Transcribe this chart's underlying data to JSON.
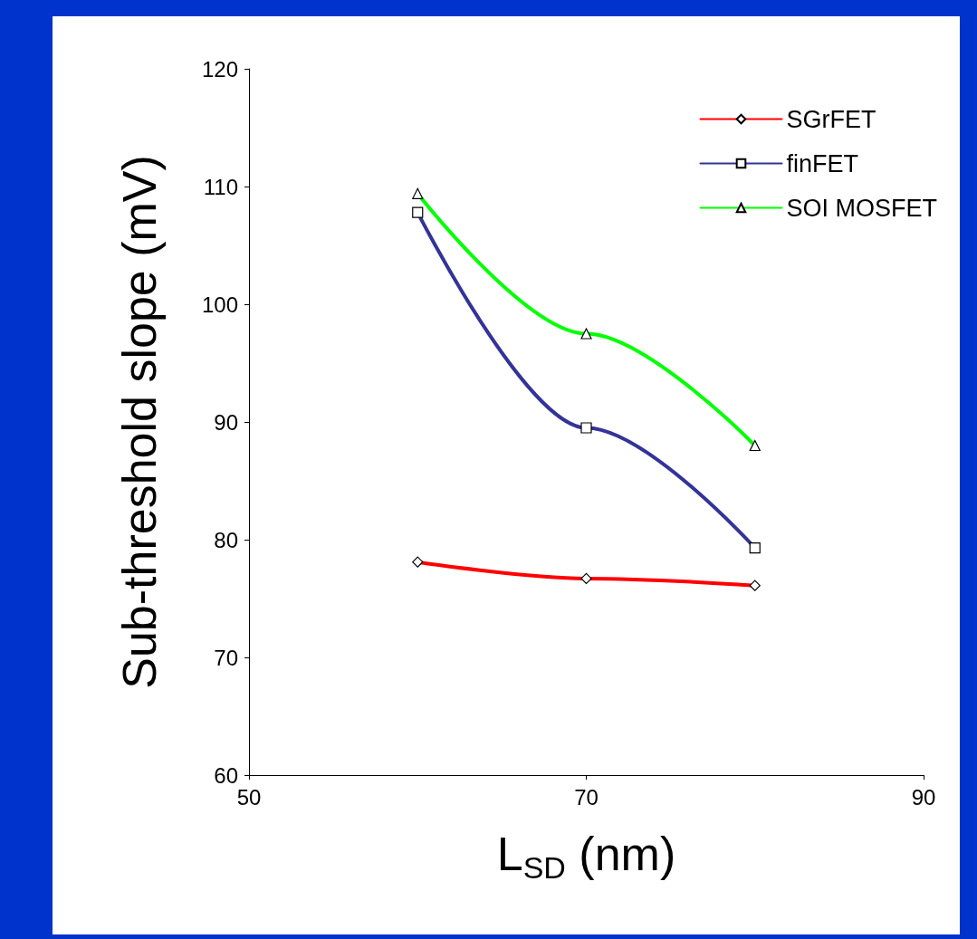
{
  "chart_data": {
    "type": "line",
    "xlabel": "L$_{SD}$ (nm)",
    "ylabel": "Sub-threshold slope (mV)",
    "x": [
      60,
      70,
      80
    ],
    "series": [
      {
        "name": "SGrFET",
        "color": "#ff0000",
        "marker": "diamond",
        "values": [
          78.1,
          76.7,
          76.1
        ]
      },
      {
        "name": "finFET",
        "color": "#333399",
        "marker": "square",
        "values": [
          107.8,
          89.5,
          79.3
        ]
      },
      {
        "name": "SOI MOSFET",
        "color": "#00ff00",
        "marker": "triangle",
        "values": [
          109.4,
          97.5,
          88
        ]
      }
    ],
    "xlim": [
      50,
      90
    ],
    "xticks": [
      50,
      70,
      90
    ],
    "ylim": [
      60,
      120
    ],
    "yticks": [
      60,
      70,
      80,
      90,
      100,
      110,
      120
    ],
    "grid": false,
    "legend": "top right"
  }
}
